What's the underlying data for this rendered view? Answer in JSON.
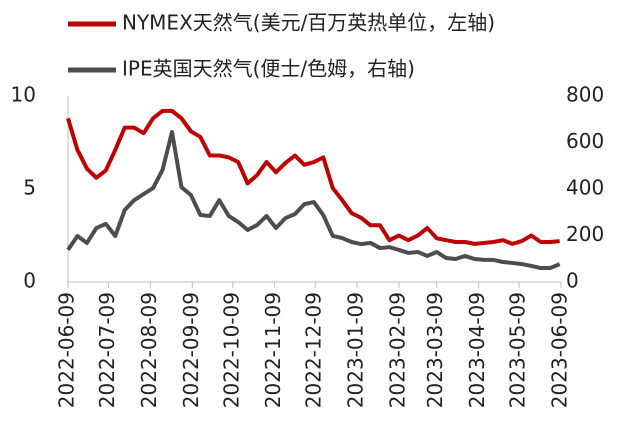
{
  "chart_data": {
    "type": "line",
    "x": [
      "2022-06-09",
      "2022-06-16",
      "2022-06-23",
      "2022-06-30",
      "2022-07-07",
      "2022-07-14",
      "2022-07-21",
      "2022-07-28",
      "2022-08-04",
      "2022-08-11",
      "2022-08-18",
      "2022-08-25",
      "2022-09-01",
      "2022-09-08",
      "2022-09-15",
      "2022-09-22",
      "2022-09-29",
      "2022-10-06",
      "2022-10-13",
      "2022-10-20",
      "2022-10-27",
      "2022-11-03",
      "2022-11-10",
      "2022-11-17",
      "2022-11-24",
      "2022-12-01",
      "2022-12-08",
      "2022-12-15",
      "2022-12-22",
      "2022-12-29",
      "2023-01-05",
      "2023-01-12",
      "2023-01-19",
      "2023-01-26",
      "2023-02-02",
      "2023-02-09",
      "2023-02-16",
      "2023-02-23",
      "2023-03-02",
      "2023-03-09",
      "2023-03-16",
      "2023-03-23",
      "2023-03-30",
      "2023-04-06",
      "2023-04-13",
      "2023-04-20",
      "2023-04-27",
      "2023-05-04",
      "2023-05-11",
      "2023-05-18",
      "2023-05-25",
      "2023-06-01",
      "2023-06-08"
    ],
    "series": [
      {
        "name": "NYMEX天然气(美元/百万英热单位，左轴)",
        "color": "#c00000",
        "axis": "y",
        "values": [
          8.8,
          7.1,
          6.1,
          5.6,
          6.0,
          7.1,
          8.3,
          8.3,
          8.0,
          8.8,
          9.2,
          9.2,
          8.8,
          8.1,
          7.8,
          6.8,
          6.8,
          6.7,
          6.45,
          5.3,
          5.75,
          6.45,
          5.9,
          6.4,
          6.8,
          6.3,
          6.45,
          6.7,
          5.05,
          4.4,
          3.7,
          3.45,
          3.05,
          3.05,
          2.25,
          2.5,
          2.25,
          2.5,
          2.9,
          2.35,
          2.25,
          2.15,
          2.15,
          2.05,
          2.1,
          2.15,
          2.25,
          2.05,
          2.2,
          2.5,
          2.15,
          2.15,
          2.2
        ]
      },
      {
        "name": "IPE英国天然气(便士/色姆，右轴)",
        "color": "#4d4d4d",
        "axis": "y2",
        "values": [
          138,
          198,
          168,
          232,
          250,
          198,
          310,
          352,
          378,
          404,
          482,
          645,
          408,
          374,
          288,
          284,
          352,
          284,
          258,
          224,
          245,
          284,
          232,
          275,
          292,
          335,
          344,
          288,
          198,
          189,
          172,
          163,
          168,
          146,
          150,
          138,
          125,
          129,
          112,
          129,
          103,
          99,
          112,
          99,
          95,
          95,
          86,
          82,
          77,
          69,
          60,
          60,
          77
        ]
      }
    ],
    "xlim": [
      "2022-06-09",
      "2023-06-09"
    ],
    "xticks": [
      "2022-06-09",
      "2022-07-09",
      "2022-08-09",
      "2022-09-09",
      "2022-10-09",
      "2022-11-09",
      "2022-12-09",
      "2023-01-09",
      "2023-02-09",
      "2023-03-09",
      "2023-04-09",
      "2023-05-09",
      "2023-06-09"
    ],
    "ylim": [
      0,
      10
    ],
    "yticks": [
      0,
      5,
      10
    ],
    "y2lim": [
      0,
      800
    ],
    "y2ticks": [
      0,
      200,
      400,
      600,
      800
    ]
  }
}
